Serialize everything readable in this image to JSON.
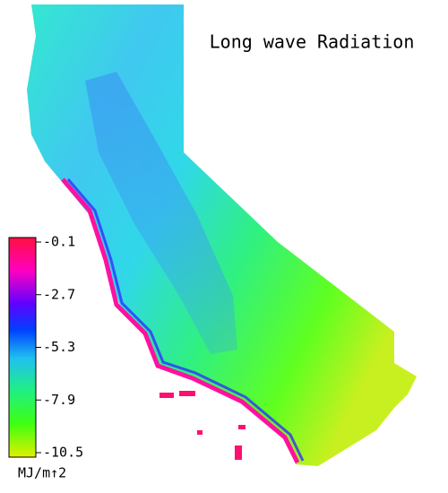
{
  "title": "Long wave Radiation",
  "colorbar": {
    "ticks": [
      -0.1,
      -2.7,
      -5.3,
      -7.9,
      -10.5
    ],
    "unit": "MJ/m↑2"
  }
}
